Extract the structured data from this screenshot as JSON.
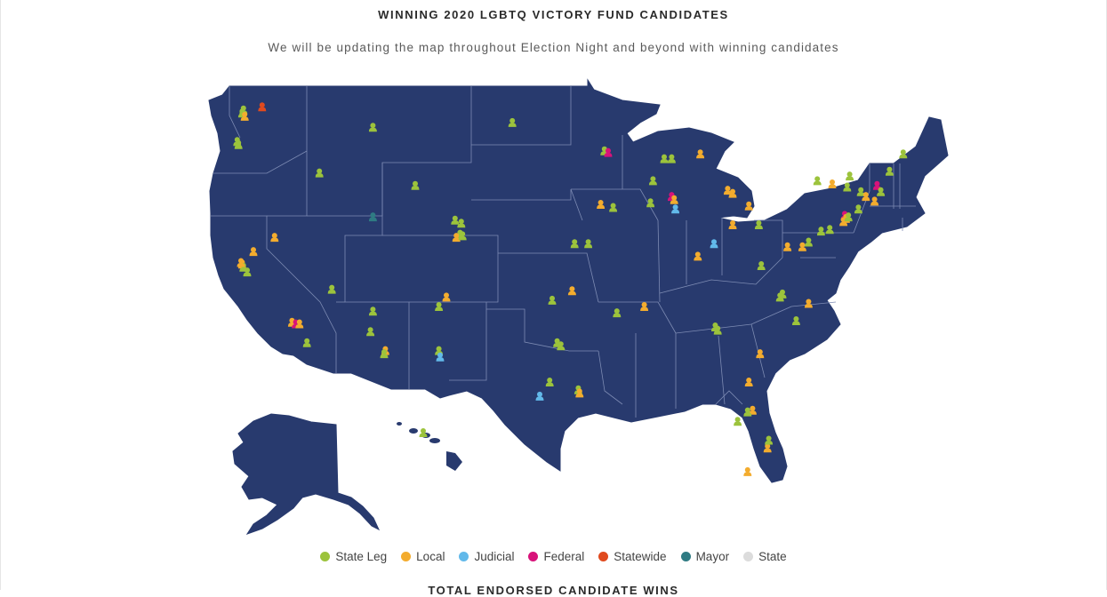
{
  "header": {
    "title": "WINNING 2020 LGBTQ VICTORY FUND CANDIDATES",
    "subtitle": "We will be updating the map throughout Election Night and beyond with winning candidates"
  },
  "map": {
    "land_color": "#283a6e",
    "border_color": "#7d8bb3",
    "regions": [
      "contiguous-us",
      "alaska",
      "hawaii"
    ]
  },
  "legend": {
    "items": [
      {
        "key": "state_leg",
        "label": "State Leg",
        "color": "#9cc33c"
      },
      {
        "key": "local",
        "label": "Local",
        "color": "#f3ac2e"
      },
      {
        "key": "judicial",
        "label": "Judicial",
        "color": "#62b9ea"
      },
      {
        "key": "federal",
        "label": "Federal",
        "color": "#d8137a"
      },
      {
        "key": "statewide",
        "label": "Statewide",
        "color": "#e04a1e"
      },
      {
        "key": "mayor",
        "label": "Mayor",
        "color": "#2f7b83"
      },
      {
        "key": "state",
        "label": "State",
        "color": "#dcdcdc"
      }
    ]
  },
  "markers": [
    {
      "type": "state_leg",
      "lon": -122.3,
      "lat": 47.6
    },
    {
      "type": "state_leg",
      "lon": -122.4,
      "lat": 47.4
    },
    {
      "type": "local",
      "lon": -122.2,
      "lat": 47.2
    },
    {
      "type": "statewide",
      "lon": -120.8,
      "lat": 47.8
    },
    {
      "type": "state_leg",
      "lon": -122.8,
      "lat": 45.6
    },
    {
      "type": "state_leg",
      "lon": -122.7,
      "lat": 45.4
    },
    {
      "type": "state_leg",
      "lon": -111.9,
      "lat": 46.5
    },
    {
      "type": "state_leg",
      "lon": -116.2,
      "lat": 43.6
    },
    {
      "type": "local",
      "lon": -122.4,
      "lat": 37.8
    },
    {
      "type": "state_leg",
      "lon": -122.3,
      "lat": 37.6
    },
    {
      "type": "state_leg",
      "lon": -122.0,
      "lat": 37.3
    },
    {
      "type": "local",
      "lon": -122.5,
      "lat": 37.9
    },
    {
      "type": "local",
      "lon": -121.5,
      "lat": 38.6
    },
    {
      "type": "local",
      "lon": -119.8,
      "lat": 39.5
    },
    {
      "type": "local",
      "lon": -118.4,
      "lat": 34.1
    },
    {
      "type": "federal",
      "lon": -118.1,
      "lat": 34.0
    },
    {
      "type": "local",
      "lon": -117.8,
      "lat": 34.0
    },
    {
      "type": "state_leg",
      "lon": -117.2,
      "lat": 32.8
    },
    {
      "type": "state_leg",
      "lon": -115.2,
      "lat": 36.2
    },
    {
      "type": "mayor",
      "lon": -111.9,
      "lat": 40.8
    },
    {
      "type": "state_leg",
      "lon": -112.1,
      "lat": 33.5
    },
    {
      "type": "state_leg",
      "lon": -111.9,
      "lat": 34.8
    },
    {
      "type": "local",
      "lon": -110.9,
      "lat": 32.3
    },
    {
      "type": "state_leg",
      "lon": -111.0,
      "lat": 32.1
    },
    {
      "type": "state_leg",
      "lon": -106.6,
      "lat": 35.1
    },
    {
      "type": "local",
      "lon": -106.0,
      "lat": 35.7
    },
    {
      "type": "state_leg",
      "lon": -106.6,
      "lat": 32.3
    },
    {
      "type": "judicial",
      "lon": -106.5,
      "lat": 31.9
    },
    {
      "type": "state_leg",
      "lon": -108.5,
      "lat": 42.8
    },
    {
      "type": "state_leg",
      "lon": -105.3,
      "lat": 40.6
    },
    {
      "type": "state_leg",
      "lon": -104.9,
      "lat": 39.7
    },
    {
      "type": "local",
      "lon": -105.2,
      "lat": 39.5
    },
    {
      "type": "state_leg",
      "lon": -104.7,
      "lat": 39.6
    },
    {
      "type": "state_leg",
      "lon": -104.8,
      "lat": 40.4
    },
    {
      "type": "state_leg",
      "lon": -100.7,
      "lat": 46.8
    },
    {
      "type": "state_leg",
      "lon": -93.3,
      "lat": 45.0
    },
    {
      "type": "federal",
      "lon": -93.0,
      "lat": 44.9
    },
    {
      "type": "local",
      "lon": -93.6,
      "lat": 41.6
    },
    {
      "type": "state_leg",
      "lon": -92.6,
      "lat": 41.4
    },
    {
      "type": "state_leg",
      "lon": -89.4,
      "lat": 43.1
    },
    {
      "type": "state_leg",
      "lon": -88.5,
      "lat": 44.5
    },
    {
      "type": "state_leg",
      "lon": -87.9,
      "lat": 44.5
    },
    {
      "type": "local",
      "lon": -85.6,
      "lat": 44.8
    },
    {
      "type": "federal",
      "lon": -87.9,
      "lat": 42.1
    },
    {
      "type": "local",
      "lon": -87.7,
      "lat": 41.9
    },
    {
      "type": "judicial",
      "lon": -87.6,
      "lat": 41.3
    },
    {
      "type": "state_leg",
      "lon": -89.6,
      "lat": 41.7
    },
    {
      "type": "local",
      "lon": -83.0,
      "lat": 42.3
    },
    {
      "type": "local",
      "lon": -83.4,
      "lat": 42.5
    },
    {
      "type": "local",
      "lon": -81.7,
      "lat": 41.5
    },
    {
      "type": "local",
      "lon": -83.0,
      "lat": 40.3
    },
    {
      "type": "judicial",
      "lon": -84.5,
      "lat": 39.1
    },
    {
      "type": "local",
      "lon": -85.8,
      "lat": 38.3
    },
    {
      "type": "state_leg",
      "lon": -80.9,
      "lat": 40.3
    },
    {
      "type": "state_leg",
      "lon": -80.7,
      "lat": 37.7
    },
    {
      "type": "local",
      "lon": -78.6,
      "lat": 38.9
    },
    {
      "type": "local",
      "lon": -77.4,
      "lat": 38.9
    },
    {
      "type": "state_leg",
      "lon": -76.9,
      "lat": 39.2
    },
    {
      "type": "state_leg",
      "lon": -75.9,
      "lat": 39.9
    },
    {
      "type": "state_leg",
      "lon": -75.2,
      "lat": 40.0
    },
    {
      "type": "federal",
      "lon": -74.0,
      "lat": 40.9
    },
    {
      "type": "local",
      "lon": -73.9,
      "lat": 40.7
    },
    {
      "type": "local",
      "lon": -74.1,
      "lat": 40.5
    },
    {
      "type": "state_leg",
      "lon": -73.7,
      "lat": 40.8
    },
    {
      "type": "state_leg",
      "lon": -73.8,
      "lat": 42.7
    },
    {
      "type": "state_leg",
      "lon": -73.6,
      "lat": 43.4
    },
    {
      "type": "state_leg",
      "lon": -72.7,
      "lat": 42.4
    },
    {
      "type": "local",
      "lon": -72.3,
      "lat": 42.1
    },
    {
      "type": "federal",
      "lon": -71.4,
      "lat": 42.8
    },
    {
      "type": "state_leg",
      "lon": -71.1,
      "lat": 42.4
    },
    {
      "type": "local",
      "lon": -71.6,
      "lat": 41.8
    },
    {
      "type": "state_leg",
      "lon": -70.4,
      "lat": 43.7
    },
    {
      "type": "state_leg",
      "lon": -69.3,
      "lat": 44.8
    },
    {
      "type": "state_leg",
      "lon": -76.2,
      "lat": 43.1
    },
    {
      "type": "local",
      "lon": -75.0,
      "lat": 42.9
    },
    {
      "type": "state_leg",
      "lon": -72.9,
      "lat": 41.3
    },
    {
      "type": "local",
      "lon": -76.9,
      "lat": 35.3
    },
    {
      "type": "state_leg",
      "lon": -79.0,
      "lat": 35.9
    },
    {
      "type": "state_leg",
      "lon": -79.2,
      "lat": 35.7
    },
    {
      "type": "state_leg",
      "lon": -77.9,
      "lat": 34.2
    },
    {
      "type": "local",
      "lon": -80.8,
      "lat": 32.1
    },
    {
      "type": "state_leg",
      "lon": -84.4,
      "lat": 33.8
    },
    {
      "type": "state_leg",
      "lon": -84.2,
      "lat": 33.6
    },
    {
      "type": "local",
      "lon": -90.1,
      "lat": 35.1
    },
    {
      "type": "state_leg",
      "lon": -92.3,
      "lat": 34.7
    },
    {
      "type": "state_leg",
      "lon": -94.6,
      "lat": 39.1
    },
    {
      "type": "state_leg",
      "lon": -95.7,
      "lat": 39.1
    },
    {
      "type": "local",
      "lon": -95.9,
      "lat": 36.1
    },
    {
      "type": "state_leg",
      "lon": -97.5,
      "lat": 35.5
    },
    {
      "type": "state_leg",
      "lon": -97.1,
      "lat": 32.8
    },
    {
      "type": "state_leg",
      "lon": -96.8,
      "lat": 32.6
    },
    {
      "type": "state_leg",
      "lon": -97.7,
      "lat": 30.3
    },
    {
      "type": "judicial",
      "lon": -98.5,
      "lat": 29.4
    },
    {
      "type": "state_leg",
      "lon": -95.4,
      "lat": 29.8
    },
    {
      "type": "local",
      "lon": -95.3,
      "lat": 29.6
    },
    {
      "type": "local",
      "lon": -81.7,
      "lat": 30.3
    },
    {
      "type": "local",
      "lon": -81.4,
      "lat": 28.5
    },
    {
      "type": "state_leg",
      "lon": -81.8,
      "lat": 28.4
    },
    {
      "type": "state_leg",
      "lon": -82.6,
      "lat": 27.8
    },
    {
      "type": "local",
      "lon": -80.2,
      "lat": 26.1
    },
    {
      "type": "state_leg",
      "lon": -80.1,
      "lat": 26.6
    },
    {
      "type": "local",
      "lon": -81.8,
      "lat": 24.6
    },
    {
      "type": "state_leg",
      "lon": -157.9,
      "lat": 21.4
    }
  ],
  "footer": {
    "next_heading": "TOTAL ENDORSED CANDIDATE WINS"
  }
}
